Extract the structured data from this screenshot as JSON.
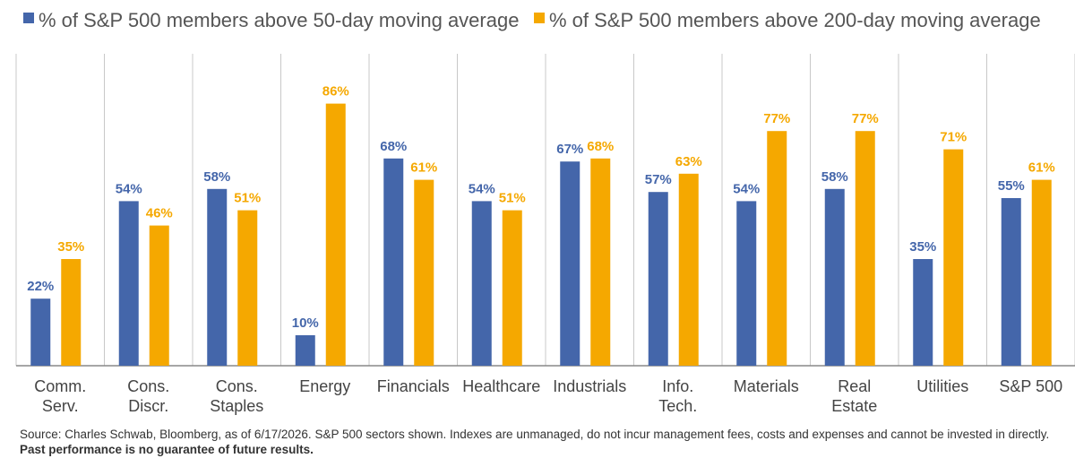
{
  "colors": {
    "series_50": "#4466AA",
    "series_200": "#F5A800",
    "grid": "#C8C8C8",
    "axis": "#888888"
  },
  "chart_data": {
    "type": "bar",
    "title": "",
    "xlabel": "",
    "ylabel": "",
    "ylim": [
      0,
      100
    ],
    "grid": "vertical category separators only",
    "legend": "top",
    "categories": [
      [
        "Comm.",
        "Serv."
      ],
      [
        "Cons.",
        "Discr."
      ],
      [
        "Cons.",
        "Staples"
      ],
      [
        "Energy"
      ],
      [
        "Financials"
      ],
      [
        "Healthcare"
      ],
      [
        "Industrials"
      ],
      [
        "Info.",
        "Tech."
      ],
      [
        "Materials"
      ],
      [
        "Real",
        "Estate"
      ],
      [
        "Utilities"
      ],
      [
        "S&P 500"
      ]
    ],
    "series": [
      {
        "name": "% of S&P 500 members above 50-day moving average",
        "values": [
          22,
          54,
          58,
          10,
          68,
          54,
          67,
          57,
          54,
          58,
          35,
          55
        ]
      },
      {
        "name": "% of S&P 500 members above 200-day moving average",
        "values": [
          35,
          46,
          51,
          86,
          61,
          51,
          68,
          63,
          77,
          77,
          71,
          61
        ]
      }
    ],
    "value_suffix": "%"
  },
  "footnote": {
    "text": "Source: Charles Schwab, Bloomberg, as of 6/17/2026. S&P 500 sectors shown. Indexes are unmanaged, do not incur management fees, costs and expenses and cannot be invested in directly. ",
    "bold": "Past performance is no guarantee of future results."
  }
}
